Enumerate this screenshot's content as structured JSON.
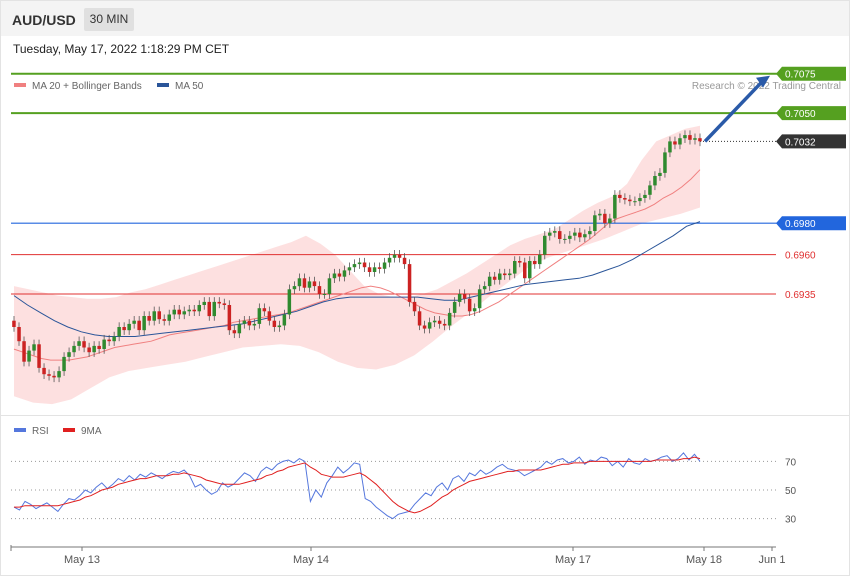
{
  "header": {
    "symbol": "AUD/USD",
    "timeframe": "30 MIN"
  },
  "timestamp": "Tuesday, May 17, 2022 1:18:29 PM CET",
  "legend": {
    "ma20": {
      "label": "MA 20 + Bollinger Bands",
      "color": "#f08080"
    },
    "ma50": {
      "label": "MA 50",
      "color": "#2a5599"
    }
  },
  "credit": "Research © 2022 Trading Central",
  "rsi_legend": {
    "rsi": {
      "label": "RSI",
      "color": "#5577dd"
    },
    "ma9": {
      "label": "9MA",
      "color": "#e02020"
    }
  },
  "chart_data": [
    {
      "type": "candlestick",
      "ylim": [
        0.686,
        0.7085
      ],
      "x_ticks": [
        "May 13",
        "May 14",
        "May 17",
        "May 18",
        "Jun 1"
      ],
      "price_levels": [
        {
          "label": "0.7075",
          "value": 0.7075,
          "kind": "target",
          "color": "#55a020"
        },
        {
          "label": "0.7050",
          "value": 0.705,
          "kind": "target",
          "color": "#55a020"
        },
        {
          "label": "0.7032",
          "value": 0.7032,
          "kind": "last",
          "color": "#333333"
        },
        {
          "label": "0.6980",
          "value": 0.698,
          "kind": "pivot",
          "color": "#2266dd"
        },
        {
          "label": "0.6960",
          "value": 0.696,
          "kind": "support",
          "color": "#e03030"
        },
        {
          "label": "0.6935",
          "value": 0.6935,
          "kind": "support",
          "color": "#e03030"
        }
      ],
      "close": [
        0.6914,
        0.6905,
        0.6892,
        0.6899,
        0.6903,
        0.6888,
        0.6884,
        0.6883,
        0.6882,
        0.6886,
        0.6895,
        0.6898,
        0.6902,
        0.6905,
        0.6901,
        0.6898,
        0.6902,
        0.69,
        0.6906,
        0.6905,
        0.6908,
        0.6914,
        0.6912,
        0.6916,
        0.6918,
        0.6912,
        0.6921,
        0.6918,
        0.6924,
        0.6919,
        0.6918,
        0.6922,
        0.6925,
        0.6922,
        0.6924,
        0.6925,
        0.6924,
        0.6928,
        0.693,
        0.6921,
        0.693,
        0.6929,
        0.6928,
        0.6912,
        0.691,
        0.6916,
        0.6918,
        0.6915,
        0.6916,
        0.6926,
        0.6924,
        0.6918,
        0.6914,
        0.6915,
        0.6922,
        0.6938,
        0.694,
        0.6945,
        0.6939,
        0.6943,
        0.694,
        0.6935,
        0.6935,
        0.6945,
        0.6948,
        0.6946,
        0.695,
        0.6952,
        0.6954,
        0.6955,
        0.6952,
        0.6949,
        0.6952,
        0.6951,
        0.6955,
        0.6958,
        0.696,
        0.6958,
        0.6954,
        0.693,
        0.6924,
        0.6915,
        0.6913,
        0.6917,
        0.6918,
        0.6916,
        0.6915,
        0.6923,
        0.693,
        0.6935,
        0.6932,
        0.6924,
        0.6926,
        0.6938,
        0.694,
        0.6946,
        0.6944,
        0.6948,
        0.6947,
        0.6948,
        0.6956,
        0.6955,
        0.6945,
        0.6956,
        0.6954,
        0.696,
        0.6972,
        0.6974,
        0.6975,
        0.697,
        0.697,
        0.6972,
        0.6974,
        0.6971,
        0.6973,
        0.6975,
        0.6985,
        0.6986,
        0.698,
        0.6983,
        0.6998,
        0.6996,
        0.6995,
        0.6994,
        0.6994,
        0.6996,
        0.6998,
        0.7004,
        0.701,
        0.7012,
        0.7025,
        0.7032,
        0.703,
        0.7034,
        0.7036,
        0.7033,
        0.7034,
        0.7032
      ],
      "ma20": [
        0.69,
        0.6898,
        0.6896,
        0.6894,
        0.6893,
        0.6893,
        0.6893,
        0.6894,
        0.6895,
        0.6897,
        0.6899,
        0.6901,
        0.6902,
        0.6903,
        0.6904,
        0.6905,
        0.6907,
        0.6909,
        0.691,
        0.6911,
        0.6912,
        0.6913,
        0.6914,
        0.6915,
        0.6917,
        0.6918,
        0.6919,
        0.692,
        0.6921,
        0.6922,
        0.6923,
        0.6925,
        0.6927,
        0.6929,
        0.6931,
        0.6933,
        0.6935,
        0.6937,
        0.6939,
        0.694,
        0.6939,
        0.6937,
        0.6934,
        0.6931,
        0.6928,
        0.6925,
        0.6923,
        0.6922,
        0.6921,
        0.6921,
        0.6922,
        0.6924,
        0.6927,
        0.693,
        0.6934,
        0.6938,
        0.6942,
        0.6946,
        0.695,
        0.6954,
        0.6958,
        0.6962,
        0.6966,
        0.697,
        0.6975,
        0.698,
        0.6983,
        0.6985,
        0.6987,
        0.6989,
        0.6992,
        0.6996,
        0.6999,
        0.7003,
        0.7008,
        0.7014
      ],
      "ma50": [
        0.6934,
        0.6928,
        0.6923,
        0.6918,
        0.6914,
        0.6911,
        0.6909,
        0.6908,
        0.6908,
        0.6908,
        0.6909,
        0.691,
        0.6911,
        0.6912,
        0.6913,
        0.6914,
        0.6915,
        0.6916,
        0.6918,
        0.692,
        0.6922,
        0.6924,
        0.6927,
        0.693,
        0.6932,
        0.6933,
        0.6933,
        0.6933,
        0.6933,
        0.6933,
        0.6933,
        0.6932,
        0.6931,
        0.6931,
        0.6933,
        0.6935,
        0.6937,
        0.6939,
        0.6941,
        0.6942,
        0.6943,
        0.6944,
        0.6945,
        0.6947,
        0.695,
        0.6953,
        0.6957,
        0.6962,
        0.6967,
        0.6972,
        0.6978,
        0.6981
      ],
      "bb_upper": [
        0.694,
        0.6938,
        0.6936,
        0.6934,
        0.6933,
        0.6932,
        0.6932,
        0.6933,
        0.6936,
        0.6938,
        0.6941,
        0.6944,
        0.6947,
        0.695,
        0.6953,
        0.6956,
        0.6959,
        0.6962,
        0.6965,
        0.6968,
        0.6972,
        0.6967,
        0.696,
        0.695,
        0.694,
        0.6935,
        0.6933,
        0.6933,
        0.6935,
        0.6938,
        0.6943,
        0.6948,
        0.6954,
        0.696,
        0.6966,
        0.697,
        0.6973,
        0.6976,
        0.6982,
        0.6988,
        0.6993,
        0.6997,
        0.7005,
        0.702,
        0.7032,
        0.7036,
        0.704,
        0.7042
      ],
      "bb_lower": [
        0.687,
        0.6866,
        0.6865,
        0.6868,
        0.6875,
        0.6882,
        0.6886,
        0.6888,
        0.689,
        0.6892,
        0.6895,
        0.6898,
        0.6901,
        0.6902,
        0.6903,
        0.6902,
        0.6898,
        0.6892,
        0.6888,
        0.6887,
        0.689,
        0.6896,
        0.6905,
        0.6915,
        0.6924,
        0.6934,
        0.6943,
        0.6952,
        0.6958,
        0.6962,
        0.6966,
        0.697,
        0.6975,
        0.698,
        0.6983,
        0.6986,
        0.699
      ]
    },
    {
      "type": "line",
      "title": "",
      "ylim": [
        15,
        85
      ],
      "y_ticks": [
        "70",
        "50",
        "30"
      ],
      "rsi": [
        38,
        36,
        42,
        40,
        37,
        39,
        41,
        38,
        35,
        40,
        44,
        43,
        46,
        50,
        48,
        52,
        55,
        51,
        54,
        58,
        56,
        60,
        57,
        61,
        59,
        62,
        60,
        58,
        61,
        63,
        62,
        64,
        60,
        52,
        54,
        50,
        47,
        49,
        55,
        52,
        54,
        58,
        62,
        60,
        56,
        63,
        66,
        64,
        68,
        70,
        71,
        69,
        72,
        70,
        42,
        50,
        45,
        55,
        60,
        66,
        62,
        65,
        69,
        68,
        44,
        42,
        38,
        35,
        32,
        30,
        33,
        34,
        35,
        40,
        44,
        48,
        46,
        52,
        55,
        50,
        58,
        60,
        56,
        62,
        60,
        64,
        61,
        63,
        66,
        68,
        65,
        64,
        63,
        60,
        62,
        64,
        66,
        70,
        68,
        71,
        72,
        69,
        70,
        73,
        68,
        71,
        70,
        73,
        72,
        67,
        70,
        66,
        72,
        69,
        68,
        72,
        70,
        71,
        73,
        74,
        70,
        72,
        76,
        71,
        75,
        70
      ],
      "ma9": [
        38,
        38,
        39,
        39,
        39,
        39,
        39,
        39,
        39,
        40,
        41,
        42,
        43,
        45,
        46,
        48,
        50,
        51,
        52,
        54,
        55,
        56,
        57,
        58,
        58,
        59,
        60,
        60,
        60,
        61,
        61,
        62,
        61,
        60,
        59,
        57,
        56,
        55,
        54,
        54,
        54,
        54,
        55,
        56,
        57,
        58,
        60,
        61,
        63,
        64,
        66,
        67,
        68,
        69,
        66,
        64,
        61,
        60,
        59,
        59,
        59,
        60,
        61,
        62,
        60,
        57,
        54,
        50,
        46,
        42,
        39,
        37,
        35,
        34,
        35,
        37,
        39,
        42,
        45,
        47,
        50,
        52,
        54,
        56,
        57,
        58,
        59,
        60,
        61,
        62,
        63,
        63,
        64,
        64,
        64,
        64,
        64,
        65,
        66,
        67,
        68,
        68,
        69,
        69,
        69,
        70,
        70,
        70,
        70,
        70,
        70,
        70,
        70,
        70,
        70,
        70,
        70,
        71,
        71,
        71,
        71,
        71,
        72,
        72,
        73,
        72
      ]
    }
  ]
}
